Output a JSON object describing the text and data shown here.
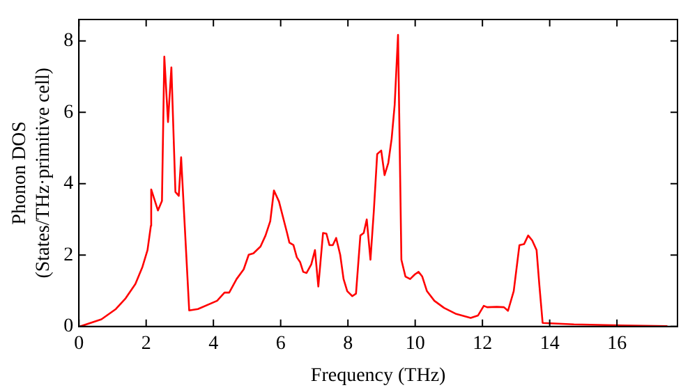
{
  "chart_data": {
    "type": "line",
    "xlabel": "Frequency (THz)",
    "ylabel": "Phonon DOS\n(States/THz·primitive cell)",
    "xlim": [
      0,
      17.8
    ],
    "ylim": [
      0,
      8.6
    ],
    "xticks": [
      0,
      2,
      4,
      6,
      8,
      10,
      12,
      14,
      16
    ],
    "yticks": [
      0,
      2,
      4,
      6,
      8
    ],
    "grid": false,
    "legend": false,
    "marker": "none",
    "line_style": "solid",
    "series": [
      {
        "color": "#ff0000",
        "x": [
          0.03,
          0.67,
          1.1,
          1.39,
          1.68,
          1.89,
          2.04,
          2.14,
          2.15,
          2.35,
          2.47,
          2.54,
          2.65,
          2.75,
          2.87,
          2.97,
          3.04,
          3.28,
          3.54,
          4.11,
          4.33,
          4.47,
          4.69,
          4.9,
          5.05,
          5.19,
          5.4,
          5.55,
          5.69,
          5.8,
          5.95,
          6.19,
          6.26,
          6.38,
          6.48,
          6.58,
          6.67,
          6.77,
          6.91,
          7.02,
          7.12,
          7.26,
          7.36,
          7.45,
          7.55,
          7.65,
          7.77,
          7.87,
          7.98,
          8.13,
          8.24,
          8.37,
          8.47,
          8.56,
          8.67,
          8.77,
          8.87,
          8.99,
          9.09,
          9.2,
          9.3,
          9.39,
          9.49,
          9.59,
          9.71,
          9.85,
          9.99,
          10.1,
          10.21,
          10.35,
          10.57,
          10.86,
          11.22,
          11.65,
          11.87,
          12.04,
          12.14,
          12.43,
          12.64,
          12.76,
          12.93,
          13.1,
          13.24,
          13.36,
          13.48,
          13.61,
          13.69,
          13.79,
          14.72,
          16.16,
          17.5
        ],
        "values": [
          0,
          0.2,
          0.49,
          0.79,
          1.19,
          1.67,
          2.14,
          2.82,
          3.84,
          3.25,
          3.52,
          7.56,
          5.73,
          7.26,
          3.77,
          3.66,
          4.74,
          0.45,
          0.49,
          0.72,
          0.95,
          0.95,
          1.33,
          1.6,
          2.01,
          2.05,
          2.24,
          2.55,
          2.95,
          3.81,
          3.5,
          2.62,
          2.35,
          2.28,
          1.94,
          1.8,
          1.53,
          1.5,
          1.74,
          2.14,
          1.12,
          2.62,
          2.6,
          2.28,
          2.28,
          2.48,
          2.01,
          1.33,
          0.99,
          0.85,
          0.92,
          2.55,
          2.62,
          3.0,
          1.87,
          3.23,
          4.83,
          4.93,
          4.24,
          4.58,
          5.26,
          6.21,
          8.17,
          1.87,
          1.4,
          1.33,
          1.46,
          1.53,
          1.4,
          0.99,
          0.72,
          0.52,
          0.35,
          0.24,
          0.31,
          0.58,
          0.54,
          0.55,
          0.54,
          0.44,
          0.99,
          2.28,
          2.31,
          2.55,
          2.41,
          2.14,
          1.19,
          0.1,
          0.06,
          0.03,
          0.01
        ]
      }
    ]
  }
}
